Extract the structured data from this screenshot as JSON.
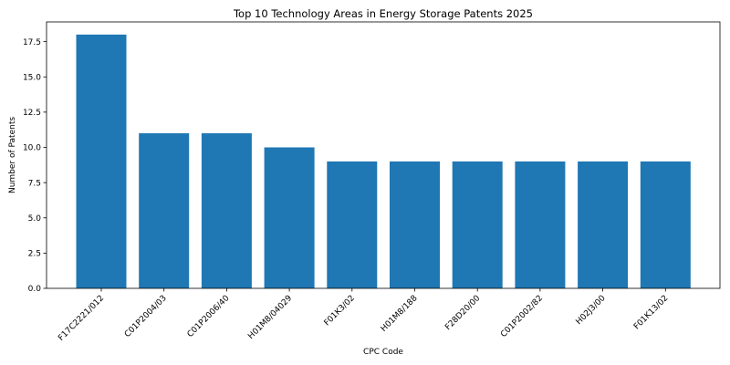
{
  "chart_data": {
    "type": "bar",
    "title": "Top 10 Technology Areas in Energy Storage Patents 2025",
    "xlabel": "CPC Code",
    "ylabel": "Number of Patents",
    "categories": [
      "F17C2221/012",
      "C01P2004/03",
      "C01P2006/40",
      "H01M8/04029",
      "F01K3/02",
      "H01M8/188",
      "F28D20/00",
      "C01P2002/82",
      "H02J3/00",
      "F01K13/02"
    ],
    "values": [
      18,
      11,
      11,
      10,
      9,
      9,
      9,
      9,
      9,
      9
    ],
    "ylim": [
      0,
      18.9
    ],
    "yticks": [
      "0.0",
      "2.5",
      "5.0",
      "7.5",
      "10.0",
      "12.5",
      "15.0",
      "17.5"
    ],
    "grid": false,
    "legend": "none",
    "bar_color": "#1f77b4"
  }
}
